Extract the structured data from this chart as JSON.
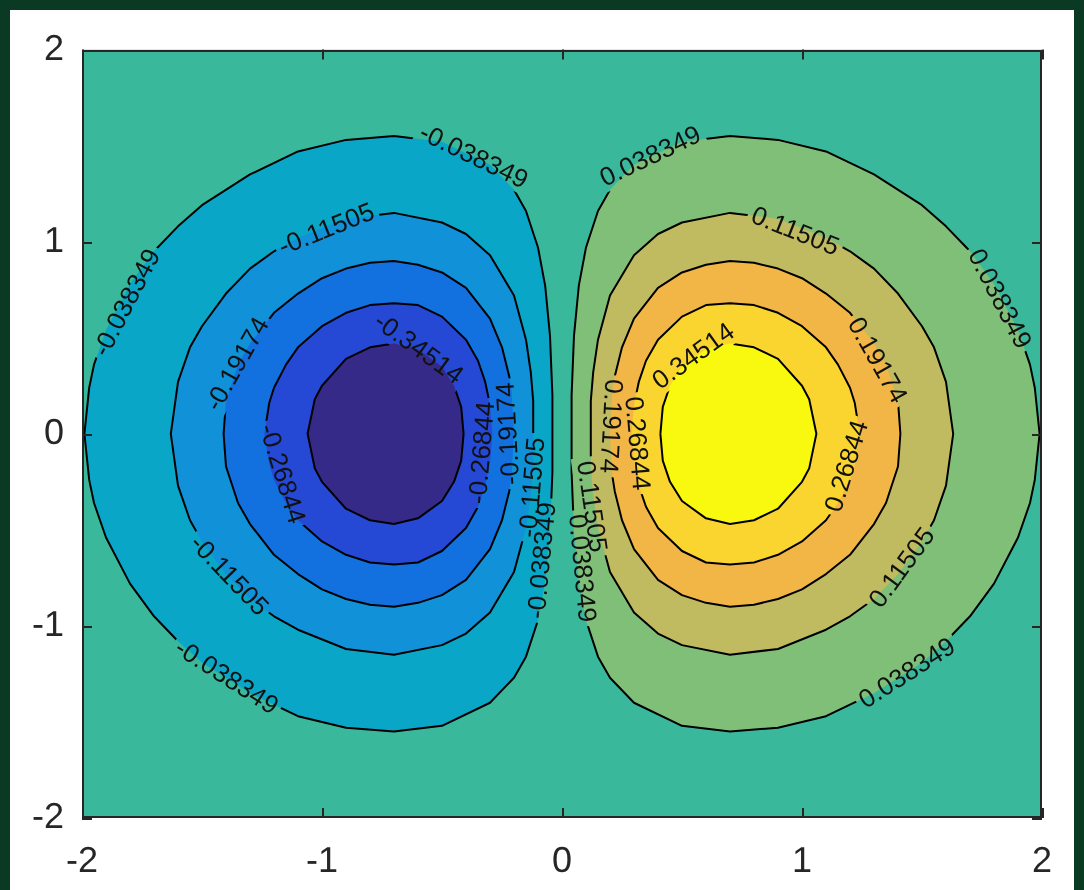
{
  "chart_data": {
    "type": "area",
    "xlim": [
      -2,
      2
    ],
    "ylim": [
      -2,
      2
    ],
    "xticks": [
      -2,
      -1,
      0,
      1,
      2
    ],
    "yticks": [
      -2,
      -1,
      0,
      1,
      2
    ],
    "series": [
      {
        "color": "#0aa6c7",
        "x": [
          -0.04,
          -0.04,
          -0.05,
          -0.07,
          -0.1,
          -0.15,
          -0.2,
          -0.3,
          -0.5,
          -0.7,
          -0.9,
          -1.1,
          -1.3,
          -1.5,
          -1.6,
          -1.7,
          -1.8,
          -1.9,
          -1.95,
          -1.97,
          -1.99,
          -1.97,
          -1.95,
          -1.9,
          -1.8,
          -1.7,
          -1.6,
          -1.5,
          -1.3,
          -1.1,
          -0.9,
          -0.7,
          -0.5,
          -0.3,
          -0.2,
          -0.15,
          -0.1,
          -0.07,
          -0.05,
          -0.04,
          -0.04
        ],
        "values": [
          0,
          0.2,
          0.51,
          0.77,
          0.97,
          1.16,
          1.27,
          1.4,
          1.52,
          1.55,
          1.53,
          1.47,
          1.35,
          1.19,
          1.08,
          0.95,
          0.78,
          0.54,
          0.36,
          0.24,
          0,
          -0.24,
          -0.36,
          -0.54,
          -0.78,
          -0.95,
          -1.08,
          -1.19,
          -1.35,
          -1.47,
          -1.53,
          -1.55,
          -1.52,
          -1.4,
          -1.27,
          -1.16,
          -0.97,
          -0.77,
          -0.51,
          -0.2,
          0
        ]
      },
      {
        "color": "#1191d8",
        "x": [
          -0.12,
          -0.12,
          -0.13,
          -0.15,
          -0.2,
          -0.3,
          -0.4,
          -0.5,
          -0.7,
          -0.9,
          -1.1,
          -1.2,
          -1.3,
          -1.4,
          -1.5,
          -1.55,
          -1.6,
          -1.63,
          -1.6,
          -1.55,
          -1.5,
          -1.4,
          -1.3,
          -1.2,
          -1.1,
          -0.9,
          -0.7,
          -0.5,
          -0.4,
          -0.3,
          -0.2,
          -0.15,
          -0.13,
          -0.12,
          -0.12
        ],
        "values": [
          0,
          0.17,
          0.32,
          0.49,
          0.72,
          0.93,
          1.04,
          1.1,
          1.15,
          1.12,
          1.02,
          0.95,
          0.86,
          0.73,
          0.56,
          0.45,
          0.27,
          0,
          -0.27,
          -0.45,
          -0.56,
          -0.73,
          -0.86,
          -0.95,
          -1.02,
          -1.12,
          -1.15,
          -1.1,
          -1.04,
          -0.93,
          -0.72,
          -0.49,
          -0.32,
          -0.17,
          0
        ]
      },
      {
        "color": "#1371df",
        "x": [
          -0.2,
          -0.21,
          -0.22,
          -0.25,
          -0.3,
          -0.4,
          -0.5,
          -0.6,
          -0.7,
          -0.8,
          -0.9,
          -1.0,
          -1.1,
          -1.2,
          -1.3,
          -1.35,
          -1.4,
          -1.41,
          -1.4,
          -1.35,
          -1.3,
          -1.2,
          -1.1,
          -1.0,
          -0.9,
          -0.8,
          -0.7,
          -0.6,
          -0.5,
          -0.4,
          -0.3,
          -0.25,
          -0.22,
          -0.21,
          -0.2
        ],
        "values": [
          0,
          0.22,
          0.3,
          0.45,
          0.6,
          0.76,
          0.84,
          0.88,
          0.9,
          0.89,
          0.86,
          0.81,
          0.73,
          0.63,
          0.47,
          0.36,
          0.17,
          0,
          -0.17,
          -0.36,
          -0.47,
          -0.63,
          -0.73,
          -0.81,
          -0.86,
          -0.89,
          -0.9,
          -0.88,
          -0.84,
          -0.76,
          -0.6,
          -0.45,
          -0.3,
          -0.22,
          0
        ]
      },
      {
        "color": "#2549d5",
        "x": [
          -0.29,
          -0.3,
          -0.32,
          -0.35,
          -0.4,
          -0.5,
          -0.6,
          -0.7,
          -0.8,
          -0.9,
          -1.0,
          -1.1,
          -1.15,
          -1.2,
          -1.22,
          -1.24,
          -1.22,
          -1.2,
          -1.15,
          -1.1,
          -1.0,
          -0.9,
          -0.8,
          -0.7,
          -0.6,
          -0.5,
          -0.4,
          -0.35,
          -0.32,
          -0.3,
          -0.29
        ],
        "values": [
          0,
          0.15,
          0.27,
          0.38,
          0.49,
          0.61,
          0.67,
          0.68,
          0.67,
          0.63,
          0.56,
          0.45,
          0.36,
          0.24,
          0.16,
          0,
          -0.16,
          -0.24,
          -0.36,
          -0.45,
          -0.56,
          -0.63,
          -0.67,
          -0.68,
          -0.67,
          -0.61,
          -0.49,
          -0.38,
          -0.27,
          -0.15,
          0
        ]
      },
      {
        "color": "#352a87",
        "x": [
          -0.41,
          -0.42,
          -0.45,
          -0.5,
          -0.6,
          -0.7,
          -0.8,
          -0.9,
          -1.0,
          -1.03,
          -1.06,
          -1.03,
          -1.0,
          -0.9,
          -0.8,
          -0.7,
          -0.6,
          -0.5,
          -0.45,
          -0.42,
          -0.41
        ],
        "values": [
          0,
          0.14,
          0.25,
          0.35,
          0.44,
          0.47,
          0.45,
          0.39,
          0.25,
          0.18,
          0,
          -0.18,
          -0.25,
          -0.39,
          -0.45,
          -0.47,
          -0.44,
          -0.35,
          -0.25,
          -0.14,
          0
        ]
      },
      {
        "color": "#80bf78",
        "x": [
          0.04,
          0.04,
          0.05,
          0.07,
          0.1,
          0.15,
          0.2,
          0.3,
          0.5,
          0.7,
          0.9,
          1.1,
          1.3,
          1.5,
          1.6,
          1.7,
          1.8,
          1.9,
          1.95,
          1.97,
          1.99,
          1.97,
          1.95,
          1.9,
          1.8,
          1.7,
          1.6,
          1.5,
          1.3,
          1.1,
          0.9,
          0.7,
          0.5,
          0.3,
          0.2,
          0.15,
          0.1,
          0.07,
          0.05,
          0.04,
          0.04
        ],
        "values": [
          0,
          0.2,
          0.51,
          0.77,
          0.97,
          1.16,
          1.27,
          1.4,
          1.52,
          1.55,
          1.53,
          1.47,
          1.35,
          1.19,
          1.08,
          0.95,
          0.78,
          0.54,
          0.36,
          0.24,
          0,
          -0.24,
          -0.36,
          -0.54,
          -0.78,
          -0.95,
          -1.08,
          -1.19,
          -1.35,
          -1.47,
          -1.53,
          -1.55,
          -1.52,
          -1.4,
          -1.27,
          -1.16,
          -0.97,
          -0.77,
          -0.51,
          -0.2,
          0
        ]
      },
      {
        "color": "#c0bb61",
        "x": [
          0.12,
          0.12,
          0.13,
          0.15,
          0.2,
          0.3,
          0.4,
          0.5,
          0.7,
          0.9,
          1.1,
          1.2,
          1.3,
          1.4,
          1.5,
          1.55,
          1.6,
          1.63,
          1.6,
          1.55,
          1.5,
          1.4,
          1.3,
          1.2,
          1.1,
          0.9,
          0.7,
          0.5,
          0.4,
          0.3,
          0.2,
          0.15,
          0.13,
          0.12,
          0.12
        ],
        "values": [
          0,
          0.17,
          0.32,
          0.49,
          0.72,
          0.93,
          1.04,
          1.1,
          1.15,
          1.12,
          1.02,
          0.95,
          0.86,
          0.73,
          0.56,
          0.45,
          0.27,
          0,
          -0.27,
          -0.45,
          -0.56,
          -0.73,
          -0.86,
          -0.95,
          -1.02,
          -1.12,
          -1.15,
          -1.1,
          -1.04,
          -0.93,
          -0.72,
          -0.49,
          -0.32,
          -0.17,
          0
        ]
      },
      {
        "color": "#f2b646",
        "x": [
          0.2,
          0.21,
          0.22,
          0.25,
          0.3,
          0.4,
          0.5,
          0.6,
          0.7,
          0.8,
          0.9,
          1.0,
          1.1,
          1.2,
          1.3,
          1.35,
          1.4,
          1.41,
          1.4,
          1.35,
          1.3,
          1.2,
          1.1,
          1.0,
          0.9,
          0.8,
          0.7,
          0.6,
          0.5,
          0.4,
          0.3,
          0.25,
          0.22,
          0.21,
          0.2
        ],
        "values": [
          0,
          0.22,
          0.3,
          0.45,
          0.6,
          0.76,
          0.84,
          0.88,
          0.9,
          0.89,
          0.86,
          0.81,
          0.73,
          0.63,
          0.47,
          0.36,
          0.17,
          0,
          -0.17,
          -0.36,
          -0.47,
          -0.63,
          -0.73,
          -0.81,
          -0.86,
          -0.89,
          -0.9,
          -0.88,
          -0.84,
          -0.76,
          -0.6,
          -0.45,
          -0.3,
          -0.22,
          0
        ]
      },
      {
        "color": "#fad42f",
        "x": [
          0.29,
          0.3,
          0.32,
          0.35,
          0.4,
          0.5,
          0.6,
          0.7,
          0.8,
          0.9,
          1.0,
          1.1,
          1.15,
          1.2,
          1.22,
          1.24,
          1.22,
          1.2,
          1.15,
          1.1,
          1.0,
          0.9,
          0.8,
          0.7,
          0.6,
          0.5,
          0.4,
          0.35,
          0.32,
          0.3,
          0.29
        ],
        "values": [
          0,
          0.15,
          0.27,
          0.38,
          0.49,
          0.61,
          0.67,
          0.68,
          0.67,
          0.63,
          0.56,
          0.45,
          0.36,
          0.24,
          0.16,
          0,
          -0.16,
          -0.24,
          -0.36,
          -0.45,
          -0.56,
          -0.63,
          -0.67,
          -0.68,
          -0.67,
          -0.61,
          -0.49,
          -0.38,
          -0.27,
          -0.15,
          0
        ]
      },
      {
        "color": "#f9f90f",
        "x": [
          0.41,
          0.42,
          0.45,
          0.5,
          0.6,
          0.7,
          0.8,
          0.9,
          1.0,
          1.03,
          1.06,
          1.03,
          1.0,
          0.9,
          0.8,
          0.7,
          0.6,
          0.5,
          0.45,
          0.42,
          0.41
        ],
        "values": [
          0,
          0.14,
          0.25,
          0.35,
          0.44,
          0.47,
          0.45,
          0.39,
          0.25,
          0.18,
          0,
          -0.18,
          -0.25,
          -0.39,
          -0.45,
          -0.47,
          -0.44,
          -0.35,
          -0.25,
          -0.14,
          0
        ]
      }
    ],
    "annotations": [
      {
        "text": "-0.038349",
        "x": -0.37,
        "y": 1.44
      },
      {
        "text": "-0.11505",
        "x": -0.98,
        "y": 1.06
      },
      {
        "text": "-0.038349",
        "x": -1.81,
        "y": 0.68
      },
      {
        "text": "-0.19174",
        "x": -1.35,
        "y": 0.36
      },
      {
        "text": "-0.34514",
        "x": -0.6,
        "y": 0.44
      },
      {
        "text": "-0.26844",
        "x": -1.17,
        "y": -0.21
      },
      {
        "text": "-0.26844",
        "x": -0.33,
        "y": -0.1
      },
      {
        "text": "-0.19174",
        "x": -0.22,
        "y": 0.0
      },
      {
        "text": "-0.11505",
        "x": -0.12,
        "y": -0.28
      },
      {
        "text": "-0.038349",
        "x": -0.08,
        "y": -0.66
      },
      {
        "text": "-0.11505",
        "x": -1.39,
        "y": -0.74
      },
      {
        "text": "-0.038349",
        "x": -1.4,
        "y": -1.27
      },
      {
        "text": "0.038349",
        "x": 0.37,
        "y": 1.44
      },
      {
        "text": "0.11505",
        "x": 0.97,
        "y": 1.05
      },
      {
        "text": "0.038349",
        "x": 1.82,
        "y": 0.7
      },
      {
        "text": "0.19174",
        "x": 1.31,
        "y": 0.38
      },
      {
        "text": "0.34514",
        "x": 0.55,
        "y": 0.4
      },
      {
        "text": "0.26844",
        "x": 0.31,
        "y": -0.05
      },
      {
        "text": "0.19174",
        "x": 0.2,
        "y": 0.04
      },
      {
        "text": "0.11505",
        "x": 0.12,
        "y": -0.38
      },
      {
        "text": "0.038349",
        "x": 0.08,
        "y": -0.7
      },
      {
        "text": "0.26844",
        "x": 1.19,
        "y": -0.17
      },
      {
        "text": "0.11505",
        "x": 1.42,
        "y": -0.7
      },
      {
        "text": "0.038349",
        "x": 1.44,
        "y": -1.25
      }
    ]
  }
}
